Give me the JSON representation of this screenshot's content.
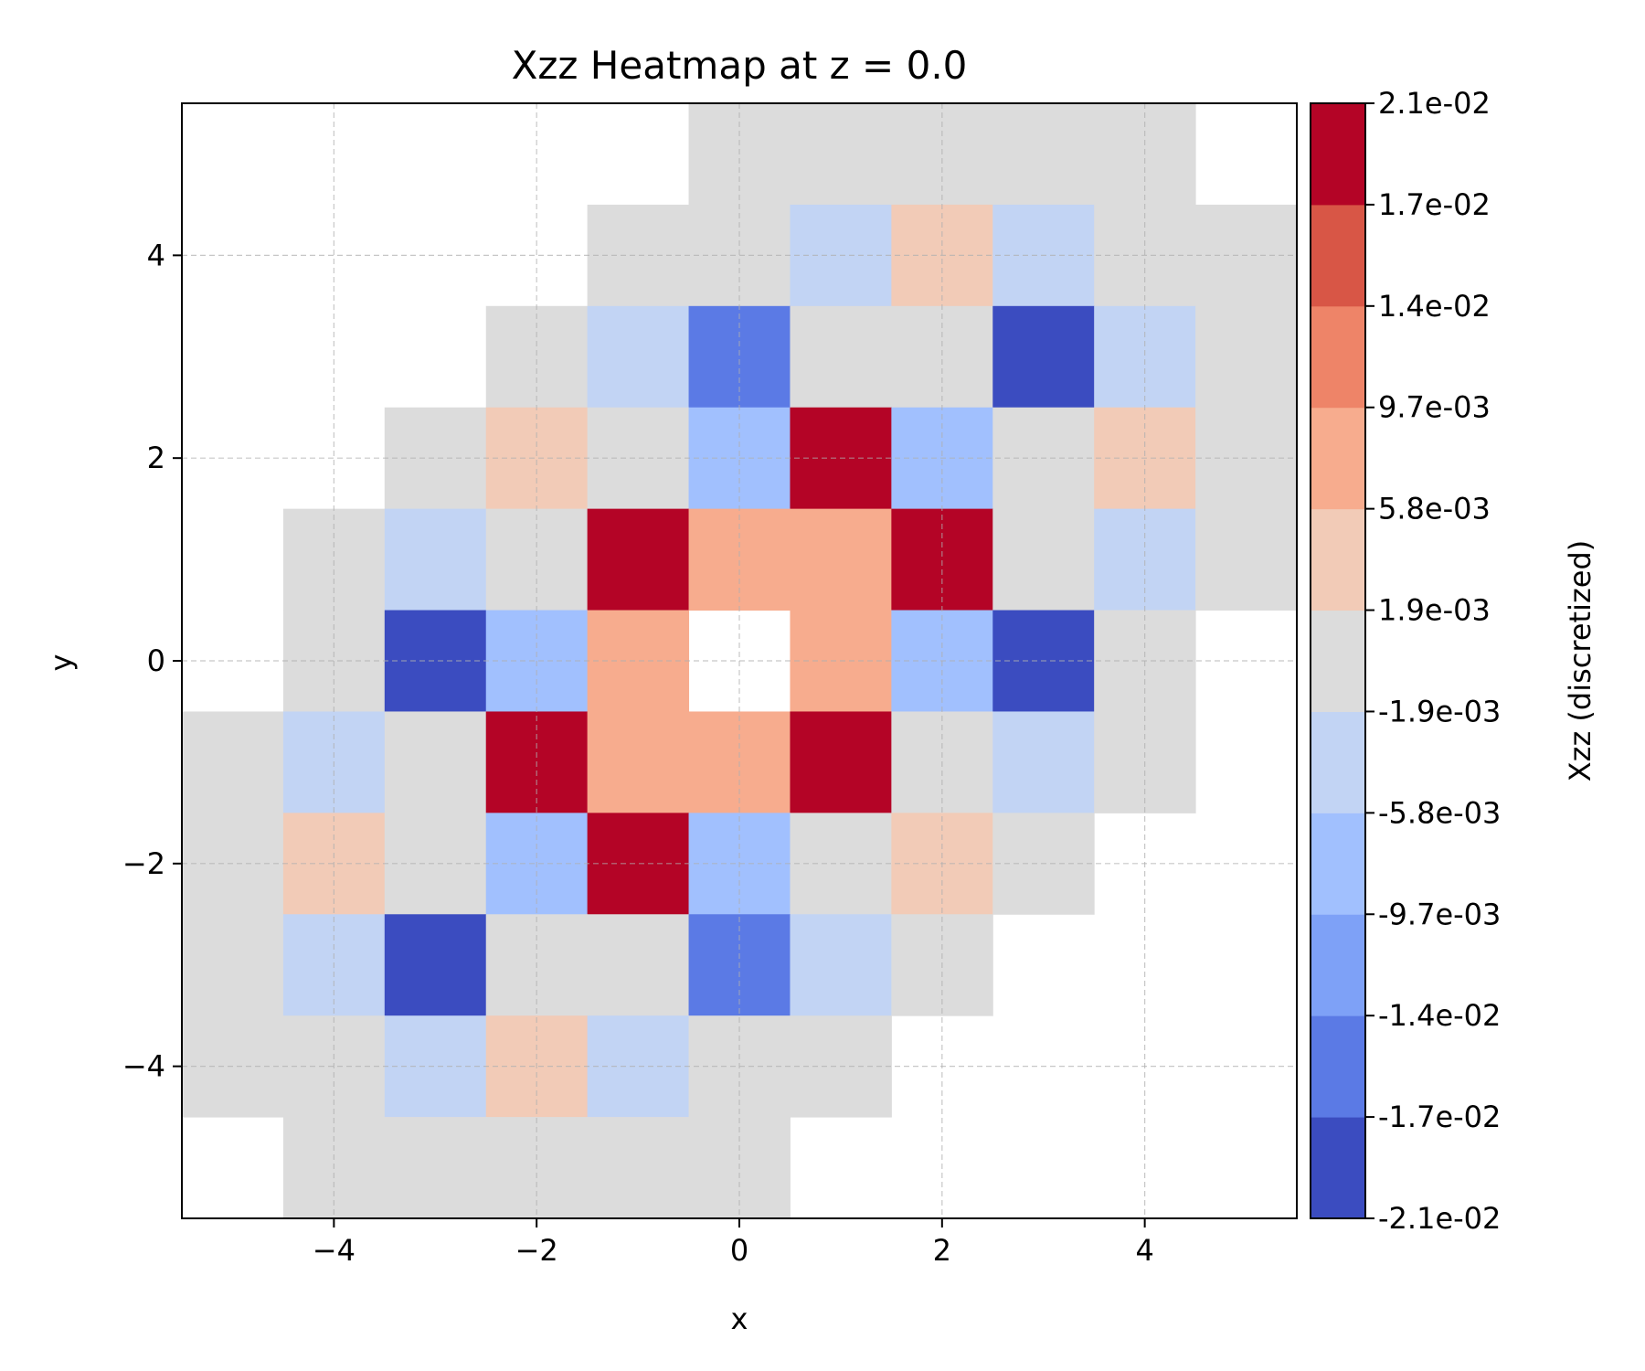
{
  "chart_data": {
    "type": "heatmap",
    "title": "Xzz Heatmap at z = 0.0",
    "xlabel": "x",
    "ylabel": "y",
    "xlim": [
      -5.5,
      5.5
    ],
    "ylim": [
      -5.5,
      5.5
    ],
    "xticks": [
      -4,
      -2,
      0,
      2,
      4
    ],
    "yticks": [
      -4,
      -2,
      0,
      2,
      4
    ],
    "xtick_labels": [
      "−4",
      "−2",
      "0",
      "2",
      "4"
    ],
    "ytick_labels": [
      "−4",
      "−2",
      "0",
      "2",
      "4"
    ],
    "grid": true,
    "x": [
      -5,
      -4,
      -3,
      -2,
      -1,
      0,
      1,
      2,
      3,
      4,
      5
    ],
    "y": [
      5,
      4,
      3,
      2,
      1,
      0,
      -1,
      -2,
      -3,
      -4,
      -5
    ],
    "z_level_index": [
      [
        null,
        null,
        null,
        null,
        null,
        5,
        5,
        5,
        5,
        5,
        null
      ],
      [
        null,
        null,
        null,
        null,
        5,
        5,
        4,
        6,
        4,
        5,
        5
      ],
      [
        null,
        null,
        null,
        5,
        4,
        1,
        5,
        5,
        0,
        4,
        5
      ],
      [
        null,
        null,
        5,
        6,
        5,
        3,
        10,
        3,
        5,
        6,
        5
      ],
      [
        null,
        5,
        4,
        5,
        10,
        7,
        7,
        10,
        5,
        4,
        5
      ],
      [
        null,
        5,
        0,
        3,
        7,
        null,
        7,
        3,
        0,
        5,
        null
      ],
      [
        5,
        4,
        5,
        10,
        7,
        7,
        10,
        5,
        4,
        5,
        null
      ],
      [
        5,
        6,
        5,
        3,
        10,
        3,
        5,
        6,
        5,
        null,
        null
      ],
      [
        5,
        4,
        0,
        5,
        5,
        1,
        4,
        5,
        null,
        null,
        null
      ],
      [
        5,
        5,
        4,
        6,
        4,
        5,
        5,
        null,
        null,
        null,
        null
      ],
      [
        null,
        5,
        5,
        5,
        5,
        5,
        null,
        null,
        null,
        null,
        null
      ]
    ],
    "colorbar": {
      "label": "Xzz (discretized)",
      "boundaries": [
        -0.021,
        -0.017,
        -0.014,
        -0.0097,
        -0.0058,
        -0.0019,
        0.0019,
        0.0058,
        0.0097,
        0.014,
        0.017,
        0.021
      ],
      "tick_labels": [
        "-2.1e-02",
        "-1.7e-02",
        "-1.4e-02",
        "-9.7e-03",
        "-5.8e-03",
        "-1.9e-03",
        "1.9e-03",
        "5.8e-03",
        "9.7e-03",
        "1.4e-02",
        "1.7e-02",
        "2.1e-02"
      ],
      "colors": [
        "#3b4cc0",
        "#5b7ae5",
        "#7ea1f7",
        "#a1c0fe",
        "#c2d4f4",
        "#dcdcdc",
        "#f2cbb7",
        "#f7ac8e",
        "#ee8468",
        "#d85646",
        "#b40426"
      ]
    }
  }
}
